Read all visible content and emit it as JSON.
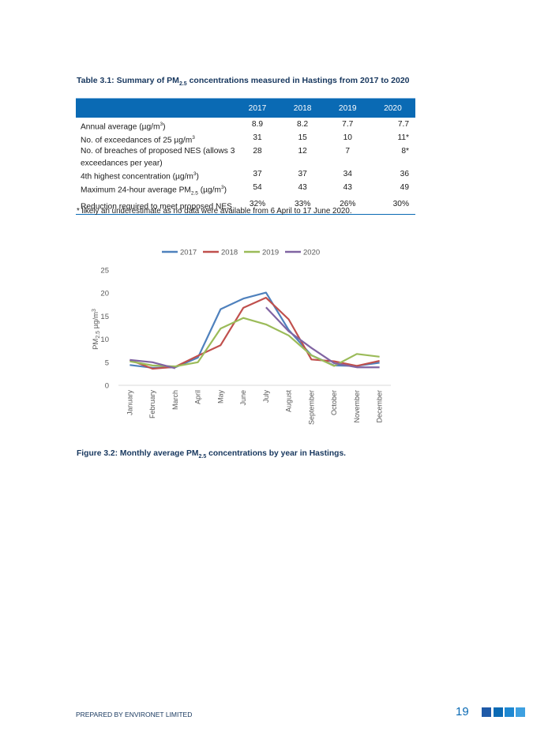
{
  "table": {
    "title_prefix": "Table 3.1: Summary of PM",
    "title_sub": "2.5",
    "title_suffix": " concentrations measured in Hastings from 2017 to 2020",
    "years": [
      "2017",
      "2018",
      "2019",
      "2020"
    ],
    "rows": [
      {
        "label": [
          "Annual average (µg/m",
          "3",
          ")"
        ],
        "values": [
          "8.9",
          "8.2",
          "7.7",
          "7.7"
        ]
      },
      {
        "label": [
          "No. of exceedances of 25 µg/m",
          "3",
          ""
        ],
        "values": [
          "31",
          "15",
          "10",
          "11*"
        ]
      },
      {
        "label": [
          "No. of breaches of proposed NES (allows 3 exceedances per year)",
          "",
          ""
        ],
        "values": [
          "28",
          "12",
          "7",
          "8*"
        ]
      },
      {
        "label": [
          "4th highest concentration (µg/m",
          "3",
          ")"
        ],
        "values": [
          "37",
          "37",
          "34",
          "36"
        ]
      },
      {
        "label": [
          "Maximum 24-hour average PM",
          "2.5",
          " (µg/m",
          "3",
          ")"
        ],
        "values": [
          "54",
          "43",
          "43",
          "49"
        ]
      },
      {
        "label": [
          "Reduction required to meet proposed NES",
          "",
          ""
        ],
        "values": [
          "32%",
          "33%",
          "26%",
          "30%"
        ]
      }
    ],
    "footnote": "* likely an underestimate as no data were available from 6 April to 17 June 2020."
  },
  "chart_data": {
    "type": "line",
    "categories": [
      "January",
      "February",
      "March",
      "April",
      "May",
      "June",
      "July",
      "August",
      "September",
      "October",
      "November",
      "December"
    ],
    "series": [
      {
        "name": "2017",
        "color": "#4f81bd",
        "values": [
          4.4,
          3.8,
          3.9,
          6.0,
          16.5,
          18.8,
          20.1,
          12.0,
          6.5,
          4.3,
          4.2,
          4.9
        ]
      },
      {
        "name": "2018",
        "color": "#c0504d",
        "values": [
          5.5,
          3.6,
          4.0,
          6.4,
          8.7,
          16.8,
          19.0,
          14.3,
          5.6,
          5.2,
          4.2,
          5.3
        ]
      },
      {
        "name": "2019",
        "color": "#9bbb59",
        "values": [
          5.2,
          4.3,
          4.1,
          5.0,
          12.3,
          14.6,
          13.2,
          10.8,
          6.5,
          4.2,
          6.8,
          6.2
        ]
      },
      {
        "name": "2020",
        "color": "#8064a2",
        "values": [
          5.5,
          5.0,
          3.7,
          null,
          null,
          null,
          16.9,
          11.7,
          8.1,
          4.8,
          3.9,
          3.9
        ]
      }
    ],
    "ylabel_prefix": "PM",
    "ylabel_sub": "2.5",
    "ylabel_suffix": " µg/m",
    "ylabel_sup": "3",
    "ylim": [
      0,
      25
    ],
    "yticks": [
      "0",
      "5",
      "10",
      "15",
      "20",
      "25"
    ],
    "legend_position": "top",
    "grid": false
  },
  "figure_caption": {
    "prefix": "Figure 3.2: Monthly average PM",
    "sub": "2.5",
    "suffix": " concentrations by year in Hastings."
  },
  "footer": {
    "prepared_by": "PREPARED BY ENVIRONET LIMITED",
    "page_number": "19",
    "accent_colors": [
      "#1f5aa8",
      "#0a6ab4",
      "#1e88d2",
      "#3ea0e0"
    ]
  }
}
